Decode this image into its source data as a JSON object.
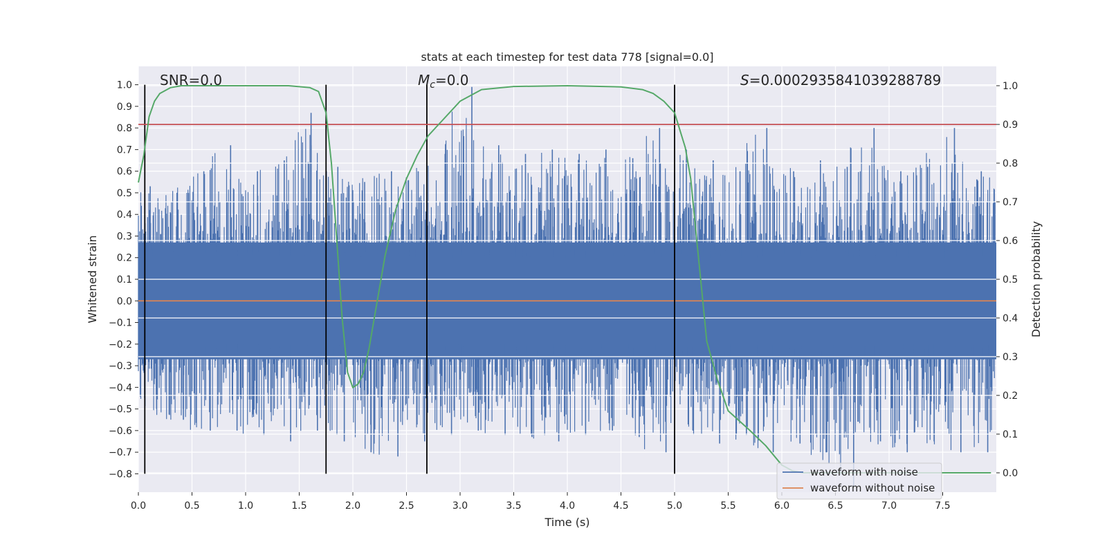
{
  "chart_data": {
    "type": "line",
    "title": "stats at each timestep for test data 778 [signal=0.0]",
    "xlabel": "Time (s)",
    "ylabel_left": "Whitened strain",
    "ylabel_right": "Detection probability",
    "xlim": [
      0.0,
      8.0
    ],
    "ylim_left": [
      -0.885,
      1.085
    ],
    "ylim_right": [
      -0.05,
      1.05
    ],
    "x_ticks": [
      "0.0",
      "0.5",
      "1.0",
      "1.5",
      "2.0",
      "2.5",
      "3.0",
      "3.5",
      "4.0",
      "4.5",
      "5.0",
      "5.5",
      "6.0",
      "6.5",
      "7.0",
      "7.5"
    ],
    "x_tick_values": [
      0.0,
      0.5,
      1.0,
      1.5,
      2.0,
      2.5,
      3.0,
      3.5,
      4.0,
      4.5,
      5.0,
      5.5,
      6.0,
      6.5,
      7.0,
      7.5
    ],
    "y_left_ticks": [
      "1.0",
      "0.9",
      "0.8",
      "0.7",
      "0.6",
      "0.5",
      "0.4",
      "0.3",
      "0.2",
      "0.1",
      "0.0",
      "−0.1",
      "−0.2",
      "−0.3",
      "−0.4",
      "−0.5",
      "−0.6",
      "−0.7",
      "−0.8"
    ],
    "y_left_tick_values": [
      1.0,
      0.9,
      0.8,
      0.7,
      0.6,
      0.5,
      0.4,
      0.3,
      0.2,
      0.1,
      0.0,
      -0.1,
      -0.2,
      -0.3,
      -0.4,
      -0.5,
      -0.6,
      -0.7,
      -0.8
    ],
    "y_right_ticks": [
      "1.0",
      "0.9",
      "0.8",
      "0.7",
      "0.6",
      "0.5",
      "0.4",
      "0.3",
      "0.2",
      "0.1",
      "0.0"
    ],
    "y_right_tick_values": [
      1.0,
      0.9,
      0.8,
      0.7,
      0.6,
      0.5,
      0.4,
      0.3,
      0.2,
      0.1,
      0.0
    ],
    "annotations": {
      "snr": "SNR=0.0",
      "mc_symbol": "M",
      "mc_subscript": "c",
      "mc_value": "=0.0",
      "s_symbol": "S",
      "s_value": "=0.0002935841039288789"
    },
    "vertical_lines_x": [
      0.06,
      1.75,
      2.69,
      5.0
    ],
    "threshold": {
      "y": 0.9,
      "axis": "right",
      "color": "#c44e52"
    },
    "series": [
      {
        "name": "waveform with noise",
        "color": "#4c72b0",
        "axis": "left",
        "representation": "noise envelope",
        "envelope_x": [
          0.0,
          0.25,
          0.5,
          0.75,
          1.0,
          1.25,
          1.5,
          1.75,
          2.0,
          2.25,
          2.5,
          2.75,
          3.0,
          3.25,
          3.5,
          3.75,
          4.0,
          4.25,
          4.5,
          4.75,
          5.0,
          5.25,
          5.5,
          5.75,
          6.0,
          6.25,
          6.5,
          6.75,
          7.0,
          7.25,
          7.5,
          7.75,
          8.0
        ],
        "envelope_upper": [
          0.53,
          0.5,
          0.6,
          0.72,
          0.6,
          0.65,
          0.87,
          0.62,
          0.55,
          0.6,
          0.6,
          0.68,
          0.99,
          0.72,
          0.68,
          0.7,
          0.68,
          0.7,
          0.66,
          0.8,
          0.7,
          0.65,
          0.6,
          0.8,
          0.6,
          0.65,
          0.62,
          0.8,
          0.6,
          0.62,
          0.8,
          0.6,
          0.58
        ],
        "envelope_lower": [
          -0.5,
          -0.55,
          -0.6,
          -0.6,
          -0.62,
          -0.65,
          -0.6,
          -0.65,
          -0.7,
          -0.72,
          -0.65,
          -0.62,
          -0.6,
          -0.62,
          -0.63,
          -0.65,
          -0.62,
          -0.6,
          -0.63,
          -0.7,
          -0.6,
          -0.66,
          -0.62,
          -0.7,
          -0.66,
          -0.7,
          -0.86,
          -0.65,
          -0.7,
          -0.65,
          -0.7,
          -0.7,
          -0.63
        ]
      },
      {
        "name": "waveform without noise",
        "color": "#dd8452",
        "axis": "left",
        "x": [
          0.0,
          8.0
        ],
        "y": [
          0.0,
          0.0
        ]
      },
      {
        "name": "",
        "color": "#55a868",
        "axis": "right",
        "x": [
          0.0,
          0.05,
          0.1,
          0.15,
          0.2,
          0.3,
          0.4,
          0.6,
          0.8,
          1.0,
          1.2,
          1.4,
          1.6,
          1.68,
          1.75,
          1.8,
          1.85,
          1.9,
          1.95,
          2.0,
          2.05,
          2.1,
          2.15,
          2.2,
          2.3,
          2.4,
          2.5,
          2.6,
          2.7,
          2.8,
          3.0,
          3.2,
          3.5,
          4.0,
          4.5,
          4.7,
          4.8,
          4.9,
          5.0,
          5.1,
          5.15,
          5.2,
          5.25,
          5.3,
          5.4,
          5.5,
          5.7,
          5.85,
          6.0,
          6.1,
          6.2,
          6.3,
          7.5,
          7.95
        ],
        "y": [
          0.75,
          0.82,
          0.92,
          0.96,
          0.98,
          0.995,
          1.0,
          1.0,
          1.0,
          1.0,
          1.0,
          1.0,
          0.995,
          0.985,
          0.93,
          0.8,
          0.6,
          0.4,
          0.26,
          0.22,
          0.23,
          0.26,
          0.32,
          0.4,
          0.56,
          0.68,
          0.76,
          0.82,
          0.87,
          0.9,
          0.96,
          0.99,
          0.998,
          1.0,
          0.997,
          0.99,
          0.98,
          0.96,
          0.93,
          0.84,
          0.76,
          0.62,
          0.48,
          0.34,
          0.24,
          0.16,
          0.11,
          0.07,
          0.02,
          0.005,
          0.0,
          0.0,
          0.0,
          0.0
        ]
      }
    ],
    "legend": {
      "placement": "lower-right",
      "entries": [
        "waveform with noise",
        "waveform without noise"
      ]
    },
    "colors": {
      "axes_background": "#eaeaf2",
      "grid": "#ffffff",
      "noise": "#4c72b0",
      "clean": "#dd8452",
      "probability": "#55a868",
      "threshold": "#c44e52",
      "event_lines": "#000000"
    },
    "grid": true
  }
}
